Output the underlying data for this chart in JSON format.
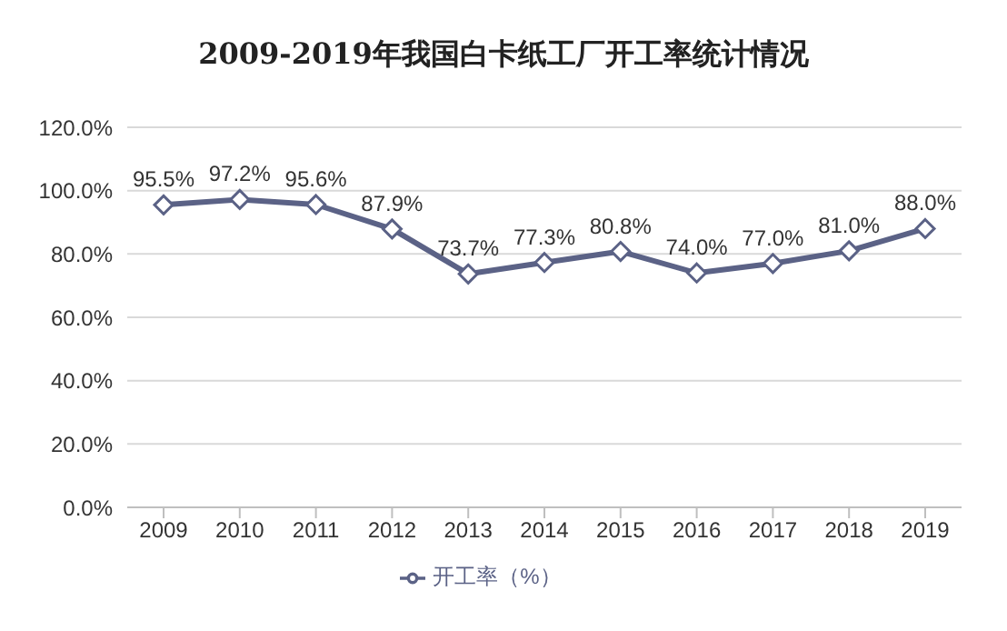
{
  "chart_data": {
    "type": "line",
    "title": "2009-2019年我国白卡纸工厂开工率统计情况",
    "categories": [
      "2009",
      "2010",
      "2011",
      "2012",
      "2013",
      "2014",
      "2015",
      "2016",
      "2017",
      "2018",
      "2019"
    ],
    "series": [
      {
        "name": "开工率（%）",
        "color": "#5b6286",
        "values": [
          95.5,
          97.2,
          95.6,
          87.9,
          73.7,
          77.3,
          80.8,
          74.0,
          77.0,
          81.0,
          88.0
        ],
        "value_labels": [
          "95.5%",
          "97.2%",
          "95.6%",
          "87.9%",
          "73.7%",
          "77.3%",
          "80.8%",
          "74.0%",
          "77.0%",
          "81.0%",
          "88.0%"
        ]
      }
    ],
    "ylim": [
      0,
      120
    ],
    "yticks": [
      {
        "value": 0,
        "label": "0.0%"
      },
      {
        "value": 20,
        "label": "20.0%"
      },
      {
        "value": 40,
        "label": "40.0%"
      },
      {
        "value": 60,
        "label": "60.0%"
      },
      {
        "value": 80,
        "label": "80.0%"
      },
      {
        "value": 100,
        "label": "100.0%"
      },
      {
        "value": 120,
        "label": "120.0%"
      }
    ],
    "grid": "y",
    "legend": "bottom",
    "marker": "diamond",
    "line_style": "solid"
  }
}
